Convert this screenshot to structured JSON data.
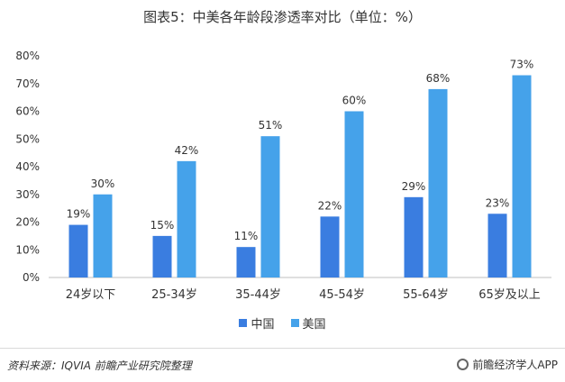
{
  "chart_data": {
    "type": "bar",
    "title": "图表5：中美各年龄段渗透率对比（单位：%）",
    "categories": [
      "24岁以下",
      "25-34岁",
      "35-44岁",
      "45-54岁",
      "55-64岁",
      "65岁及以上"
    ],
    "series": [
      {
        "name": "中国",
        "values": [
          19,
          15,
          11,
          22,
          29,
          23
        ],
        "color": "#3a7de0"
      },
      {
        "name": "美国",
        "values": [
          30,
          42,
          51,
          60,
          68,
          73
        ],
        "color": "#45a2ea"
      }
    ],
    "ylim": [
      0,
      80
    ],
    "yticks": [
      "0%",
      "10%",
      "20%",
      "30%",
      "40%",
      "50%",
      "60%",
      "70%",
      "80%"
    ],
    "value_suffix": "%",
    "xlabel": "",
    "ylabel": "",
    "grid": false,
    "legend_position": "bottom"
  },
  "footer": {
    "source": "资料来源：IQVIA 前瞻产业研究院整理",
    "brand": "前瞻经济学人APP"
  }
}
